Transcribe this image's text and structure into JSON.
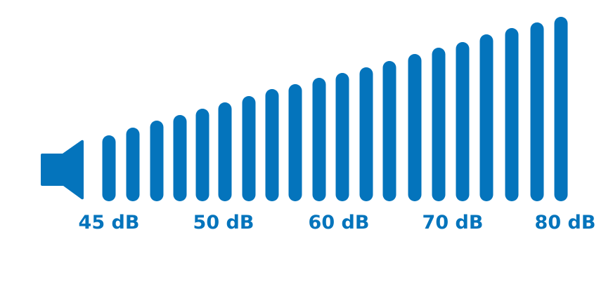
{
  "color": "#0474BC",
  "icon": "speaker-icon",
  "labels": [
    "45 dB",
    "50 dB",
    "60 dB",
    "70 dB",
    "80 dB"
  ]
}
